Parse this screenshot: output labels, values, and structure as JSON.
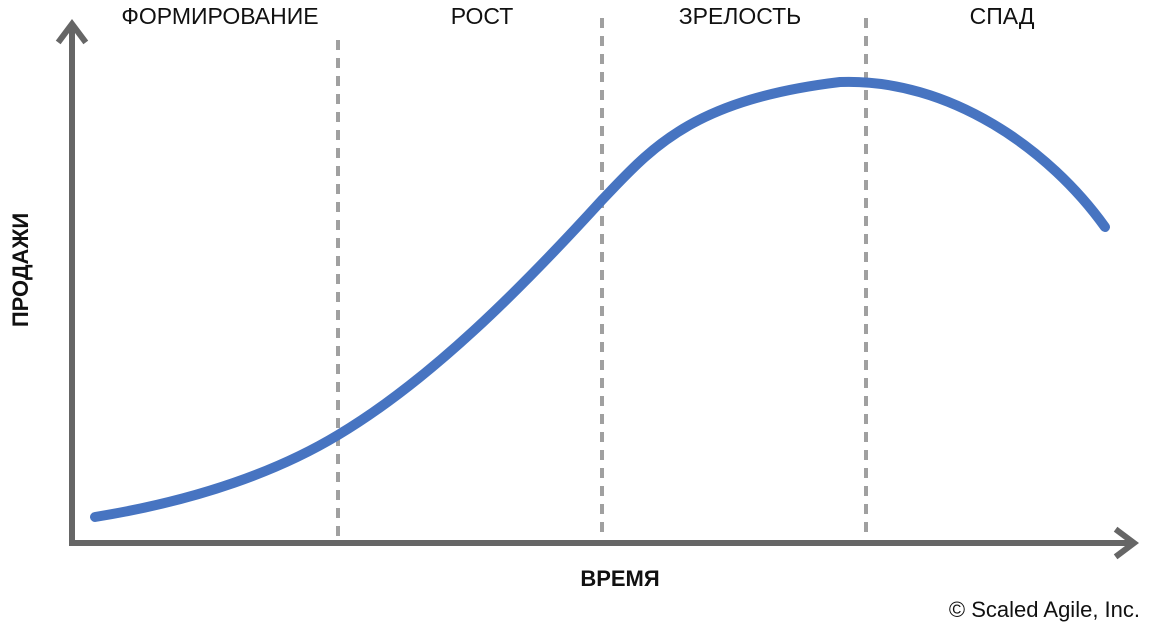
{
  "phases": [
    "ФОРМИРОВАНИЕ",
    "РОСТ",
    "ЗРЕЛОСТЬ",
    "СПАД"
  ],
  "y_axis_label": "ПРОДАЖИ",
  "x_axis_label": "ВРЕМЯ",
  "copyright": "© Scaled Agile, Inc."
}
